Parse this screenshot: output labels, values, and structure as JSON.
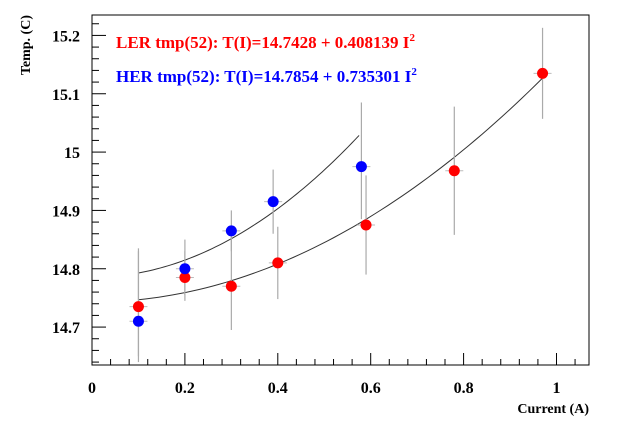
{
  "chart_data": {
    "type": "scatter",
    "title": "",
    "xlabel": "Current (A)",
    "ylabel": "Temp. (C)",
    "xlim": [
      0,
      1.07
    ],
    "ylim": [
      14.635,
      15.235
    ],
    "x_ticks": [
      0,
      0.2,
      0.4,
      0.6,
      0.8,
      1
    ],
    "x_tick_labels": [
      "0",
      "0.2",
      "0.4",
      "0.6",
      "0.8",
      "1"
    ],
    "y_ticks": [
      14.7,
      14.8,
      14.9,
      15,
      15.1,
      15.2
    ],
    "y_tick_labels": [
      "14.7",
      "14.8",
      "14.9",
      "15",
      "15.1",
      "15.2"
    ],
    "grid": false,
    "legend_position": "top-left",
    "series": [
      {
        "name": "LER",
        "legend_main": "LER tmp(52): T(I)=14.7428 + 0.408139 I",
        "legend_sup": "2",
        "color": "#ff0000",
        "x": [
          0.1,
          0.2,
          0.3,
          0.4,
          0.59,
          0.78,
          0.97
        ],
        "y": [
          14.735,
          14.785,
          14.77,
          14.81,
          14.875,
          14.968,
          15.135
        ],
        "err_low": [
          0.085,
          0.04,
          0.075,
          0.062,
          0.085,
          0.11,
          0.078
        ],
        "err_high": [
          0.1,
          0.045,
          0.085,
          0.062,
          0.085,
          0.11,
          0.078
        ],
        "fit": {
          "a": 14.7428,
          "b": 0.408139,
          "x_min": 0.1,
          "x_max": 0.97
        }
      },
      {
        "name": "HER",
        "legend_main": "HER tmp(52): T(I)=14.7854 + 0.735301 I",
        "legend_sup": "2",
        "color": "#0000ff",
        "x": [
          0.1,
          0.2,
          0.3,
          0.39,
          0.58
        ],
        "y": [
          14.71,
          14.8,
          14.865,
          14.915,
          14.975
        ],
        "err_low": [
          0.07,
          0.045,
          0.035,
          0.055,
          0.09
        ],
        "err_high": [
          0.12,
          0.05,
          0.035,
          0.055,
          0.11
        ],
        "fit": {
          "a": 14.7854,
          "b": 0.735301,
          "x_min": 0.1,
          "x_max": 0.575
        }
      }
    ]
  }
}
